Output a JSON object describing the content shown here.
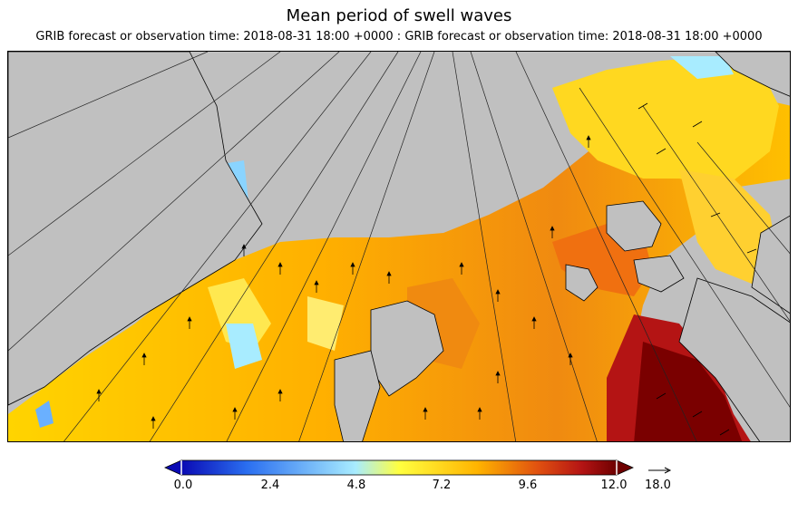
{
  "title": "Mean period of swell waves",
  "subtitle": "GRIB forecast or observation time: 2018-08-31 18:00 +0000 : GRIB forecast or observation time: 2018-08-31 18:00 +0000",
  "colorbar": {
    "ticks": [
      "0.0",
      "2.4",
      "4.8",
      "7.2",
      "9.6",
      "12.0"
    ],
    "vector_reference": "18.0",
    "colors": [
      "#0a0ab4",
      "#2a6ef0",
      "#a8ecff",
      "#ffff40",
      "#ffb400",
      "#e05010",
      "#b41414",
      "#6e0000"
    ]
  },
  "map": {
    "land_color": "#c0c0c0",
    "field": "mean period of swell waves",
    "coastline_color": "#000000"
  }
}
